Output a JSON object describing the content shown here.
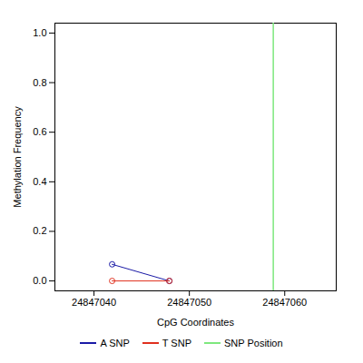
{
  "chart_data": {
    "type": "line",
    "x_label": "CpG Coordinates",
    "y_label": "Methylation Frequency",
    "xlim": [
      24847035.9,
      24847065.4
    ],
    "xticks": [
      24847040,
      24847050,
      24847060
    ],
    "ylim": [
      -0.04,
      1.04
    ],
    "yticks": [
      0,
      0.2,
      0.4,
      0.6,
      0.8,
      1
    ],
    "legend": "bottom",
    "grid": false,
    "series": [
      {
        "name": "A SNP",
        "color": "#1a1aa6",
        "marker": "open_circle",
        "type": "line",
        "x": [
          24847041.9,
          24847047.9
        ],
        "values": [
          0.067,
          0
        ]
      },
      {
        "name": "T SNP",
        "color": "#e0301e",
        "marker": "open_circle",
        "type": "line",
        "x": [
          24847041.9,
          24847047.9
        ],
        "values": [
          0,
          0
        ]
      },
      {
        "name": "SNP Position",
        "color": "#7ee87e",
        "type": "rule",
        "x": [
          24847058.8
        ]
      }
    ]
  }
}
